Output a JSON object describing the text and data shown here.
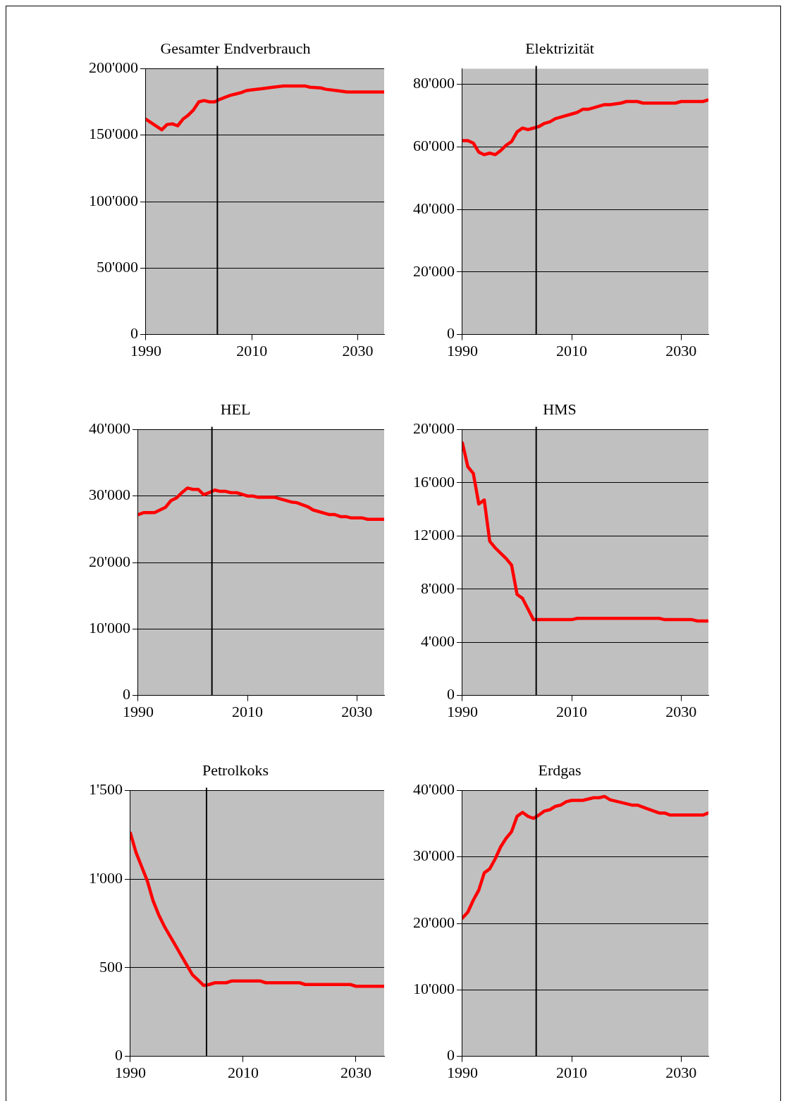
{
  "chart_data": [
    {
      "type": "line",
      "title": "Gesamter Endverbrauch",
      "series": [
        {
          "color": "#ff0000",
          "x": [
            1990,
            1993,
            1994,
            1995,
            1996,
            1997,
            1998,
            1999,
            2000,
            2001,
            2002,
            2003,
            2004,
            2005,
            2006,
            2007,
            2008,
            2009,
            2010,
            2012,
            2014,
            2016,
            2020,
            2021,
            2023,
            2024,
            2026,
            2028,
            2035
          ],
          "values": [
            162000,
            154000,
            158000,
            158500,
            157000,
            162000,
            165000,
            169000,
            175000,
            176000,
            175000,
            175000,
            177000,
            178500,
            180000,
            181000,
            182000,
            183500,
            184000,
            185000,
            186000,
            187000,
            187000,
            186000,
            185500,
            184500,
            183500,
            182500,
            182500
          ]
        }
      ],
      "xlim": [
        1990,
        2035
      ],
      "xticks": [
        1990,
        2010,
        2030
      ],
      "ylim": [
        0,
        200000
      ],
      "yticks": [
        {
          "value": 0,
          "label": "0"
        },
        {
          "value": 50000,
          "label": "50'000"
        },
        {
          "value": 100000,
          "label": "100'000"
        },
        {
          "value": 150000,
          "label": "150'000"
        },
        {
          "value": 200000,
          "label": "200'000"
        }
      ],
      "grid": "y",
      "legend": false,
      "ref_lines": [
        {
          "axis": "x",
          "value": 2003.5,
          "color": "#000000"
        }
      ]
    },
    {
      "type": "line",
      "title": "Elektrizität",
      "series": [
        {
          "color": "#ff0000",
          "x": [
            1990,
            1991,
            1992,
            1993,
            1994,
            1995,
            1996,
            1997,
            1998,
            1999,
            2000,
            2001,
            2002,
            2003,
            2004,
            2005,
            2006,
            2007,
            2008,
            2010,
            2011,
            2012,
            2013,
            2016,
            2017,
            2019,
            2020,
            2022,
            2023,
            2029,
            2030,
            2034,
            2035
          ],
          "values": [
            62000,
            62000,
            61200,
            58300,
            57500,
            58000,
            57500,
            58800,
            60500,
            61700,
            64800,
            66000,
            65500,
            66000,
            66500,
            67500,
            68000,
            69000,
            69500,
            70500,
            71000,
            72000,
            72000,
            73500,
            73500,
            74000,
            74500,
            74500,
            74000,
            74000,
            74500,
            74500,
            75000
          ]
        }
      ],
      "xlim": [
        1990,
        2035
      ],
      "xticks": [
        1990,
        2010,
        2030
      ],
      "ylim": [
        0,
        85000
      ],
      "yticks": [
        {
          "value": 0,
          "label": "0"
        },
        {
          "value": 20000,
          "label": "20'000"
        },
        {
          "value": 40000,
          "label": "40'000"
        },
        {
          "value": 60000,
          "label": "60'000"
        },
        {
          "value": 80000,
          "label": "80'000"
        }
      ],
      "grid": "y",
      "legend": false,
      "ref_lines": [
        {
          "axis": "x",
          "value": 2003.5,
          "color": "#000000"
        }
      ]
    },
    {
      "type": "line",
      "title": "HEL",
      "series": [
        {
          "color": "#ff0000",
          "x": [
            1990,
            1991,
            1993,
            1995,
            1996,
            1997,
            1998,
            1999,
            2000,
            2001,
            2002,
            2003,
            2004,
            2005,
            2006,
            2007,
            2008,
            2010,
            2011,
            2012,
            2015,
            2018,
            2019,
            2021,
            2022,
            2025,
            2026,
            2027,
            2028,
            2029,
            2031,
            2032,
            2035
          ],
          "values": [
            27200,
            27500,
            27500,
            28300,
            29300,
            29700,
            30500,
            31200,
            31000,
            31000,
            30200,
            30500,
            30900,
            30700,
            30700,
            30500,
            30500,
            30000,
            30000,
            29800,
            29800,
            29100,
            29000,
            28400,
            27900,
            27200,
            27200,
            26900,
            26900,
            26700,
            26700,
            26500,
            26500
          ]
        }
      ],
      "xlim": [
        1990,
        2035
      ],
      "xticks": [
        1990,
        2010,
        2030
      ],
      "ylim": [
        0,
        40000
      ],
      "yticks": [
        {
          "value": 0,
          "label": "0"
        },
        {
          "value": 10000,
          "label": "10'000"
        },
        {
          "value": 20000,
          "label": "20'000"
        },
        {
          "value": 30000,
          "label": "30'000"
        },
        {
          "value": 40000,
          "label": "40'000"
        }
      ],
      "grid": "y",
      "legend": false,
      "ref_lines": [
        {
          "axis": "x",
          "value": 2003.5,
          "color": "#000000"
        }
      ]
    },
    {
      "type": "line",
      "title": "HMS",
      "series": [
        {
          "color": "#ff0000",
          "x": [
            1990,
            1991,
            1992,
            1993,
            1994,
            1995,
            1996,
            1997,
            1998,
            1999,
            2000,
            2001,
            2002,
            2003,
            2010,
            2011,
            2026,
            2027,
            2032,
            2033,
            2035
          ],
          "values": [
            19000,
            17200,
            16700,
            14400,
            14700,
            11600,
            11100,
            10700,
            10300,
            9800,
            7600,
            7300,
            6500,
            5700,
            5700,
            5800,
            5800,
            5700,
            5700,
            5600,
            5600
          ]
        }
      ],
      "xlim": [
        1990,
        2035
      ],
      "xticks": [
        1990,
        2010,
        2030
      ],
      "ylim": [
        0,
        20000
      ],
      "yticks": [
        {
          "value": 0,
          "label": "0"
        },
        {
          "value": 4000,
          "label": "4'000"
        },
        {
          "value": 8000,
          "label": "8'000"
        },
        {
          "value": 12000,
          "label": "12'000"
        },
        {
          "value": 16000,
          "label": "16'000"
        },
        {
          "value": 20000,
          "label": "20'000"
        }
      ],
      "grid": "y",
      "legend": false,
      "ref_lines": [
        {
          "axis": "x",
          "value": 2003.5,
          "color": "#000000"
        }
      ]
    },
    {
      "type": "line",
      "title": "Petrolkoks",
      "series": [
        {
          "color": "#ff0000",
          "x": [
            1990,
            1991,
            1992,
            1993,
            1994,
            1995,
            1996,
            1997,
            1998,
            1999,
            2000,
            2001,
            2002,
            2003,
            2004,
            2005,
            2007,
            2008,
            2013,
            2014,
            2020,
            2021,
            2029,
            2030,
            2035
          ],
          "values": [
            1260,
            1150,
            1070,
            990,
            880,
            800,
            735,
            680,
            625,
            570,
            515,
            460,
            430,
            400,
            405,
            415,
            415,
            425,
            425,
            415,
            415,
            405,
            405,
            395,
            395
          ]
        }
      ],
      "xlim": [
        1990,
        2035
      ],
      "xticks": [
        1990,
        2010,
        2030
      ],
      "ylim": [
        0,
        1500
      ],
      "yticks": [
        {
          "value": 0,
          "label": "0"
        },
        {
          "value": 500,
          "label": "500"
        },
        {
          "value": 1000,
          "label": "1'000"
        },
        {
          "value": 1500,
          "label": "1'500"
        }
      ],
      "grid": "y",
      "legend": false,
      "ref_lines": [
        {
          "axis": "x",
          "value": 2003.5,
          "color": "#000000"
        }
      ]
    },
    {
      "type": "line",
      "title": "Erdgas",
      "series": [
        {
          "color": "#ff0000",
          "x": [
            1990,
            1991,
            1992,
            1993,
            1994,
            1995,
            1996,
            1997,
            1998,
            1999,
            2000,
            2001,
            2002,
            2003,
            2004,
            2005,
            2006,
            2007,
            2008,
            2009,
            2010,
            2012,
            2014,
            2015,
            2016,
            2017,
            2019,
            2021,
            2022,
            2024,
            2026,
            2027,
            2028,
            2034,
            2035
          ],
          "values": [
            20800,
            21700,
            23500,
            25000,
            27600,
            28200,
            29700,
            31500,
            32800,
            33800,
            36100,
            36700,
            36100,
            35800,
            36300,
            36900,
            37100,
            37600,
            37800,
            38300,
            38500,
            38500,
            38900,
            38900,
            39100,
            38600,
            38200,
            37800,
            37800,
            37200,
            36600,
            36600,
            36300,
            36300,
            36600
          ]
        }
      ],
      "xlim": [
        1990,
        2035
      ],
      "xticks": [
        1990,
        2010,
        2030
      ],
      "ylim": [
        0,
        40000
      ],
      "yticks": [
        {
          "value": 0,
          "label": "0"
        },
        {
          "value": 10000,
          "label": "10'000"
        },
        {
          "value": 20000,
          "label": "20'000"
        },
        {
          "value": 30000,
          "label": "30'000"
        },
        {
          "value": 40000,
          "label": "40'000"
        }
      ],
      "grid": "y",
      "legend": false,
      "ref_lines": [
        {
          "axis": "x",
          "value": 2003.5,
          "color": "#000000"
        }
      ]
    }
  ]
}
